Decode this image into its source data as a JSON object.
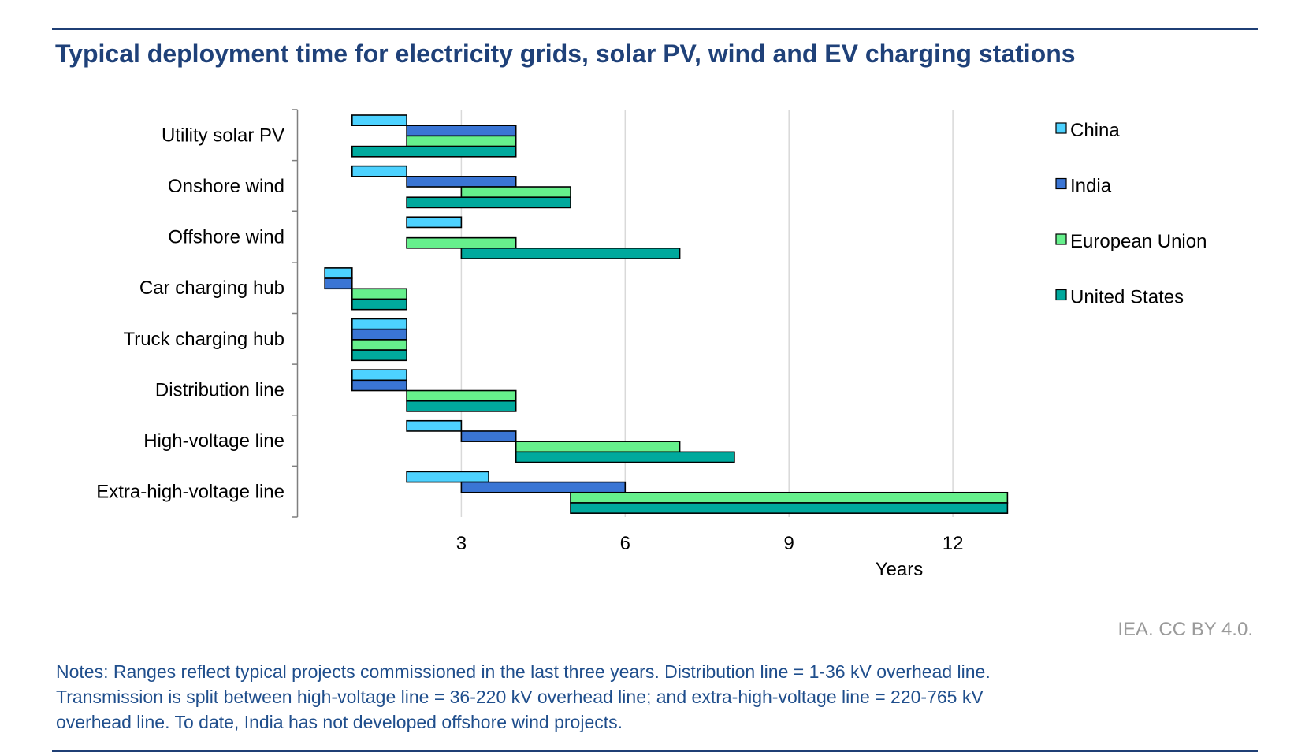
{
  "title": "Typical deployment time for electricity grids, solar PV, wind and EV charging stations",
  "credit": "IEA. CC BY 4.0.",
  "notes": [
    "Notes: Ranges reflect typical projects commissioned in the last three years. Distribution line = 1-36 kV overhead line.",
    "Transmission is split between high-voltage line = 36-220 kV overhead line; and extra-high-voltage line = 220-765 kV",
    "overhead line. To date, India has not developed offshore wind projects."
  ],
  "chart_data": {
    "type": "bar",
    "subtype": "floating-range-horizontal",
    "title": "Typical deployment time for electricity grids, solar PV, wind and EV charging stations",
    "xlabel": "Years",
    "ylabel": "",
    "xlim": [
      0,
      13.5
    ],
    "xticks": [
      3,
      6,
      9,
      12
    ],
    "grid": true,
    "legend_position": "right",
    "categories": [
      "Utility solar PV",
      "Onshore wind",
      "Offshore wind",
      "Car charging hub",
      "Truck charging hub",
      "Distribution line",
      "High-voltage line",
      "Extra-high-voltage line"
    ],
    "series": [
      {
        "name": "China",
        "color": "#4dd2ff",
        "ranges": [
          [
            1,
            2
          ],
          [
            1,
            2
          ],
          [
            2,
            3
          ],
          [
            0.5,
            1
          ],
          [
            1,
            2
          ],
          [
            1,
            2
          ],
          [
            2,
            3
          ],
          [
            2,
            3.5
          ]
        ]
      },
      {
        "name": "India",
        "color": "#3a75d4",
        "ranges": [
          [
            2,
            4
          ],
          [
            2,
            4
          ],
          null,
          [
            0.5,
            1
          ],
          [
            1,
            2
          ],
          [
            1,
            2
          ],
          [
            3,
            4
          ],
          [
            3,
            6
          ]
        ]
      },
      {
        "name": "European Union",
        "color": "#66f08c",
        "ranges": [
          [
            2,
            4
          ],
          [
            3,
            5
          ],
          [
            2,
            4
          ],
          [
            1,
            2
          ],
          [
            1,
            2
          ],
          [
            2,
            4
          ],
          [
            4,
            7
          ],
          [
            5,
            13
          ]
        ]
      },
      {
        "name": "United States",
        "color": "#00a99d",
        "ranges": [
          [
            1,
            4
          ],
          [
            2,
            5
          ],
          [
            3,
            7
          ],
          [
            1,
            2
          ],
          [
            1,
            2
          ],
          [
            2,
            4
          ],
          [
            4,
            8
          ],
          [
            5,
            13
          ]
        ]
      }
    ]
  }
}
